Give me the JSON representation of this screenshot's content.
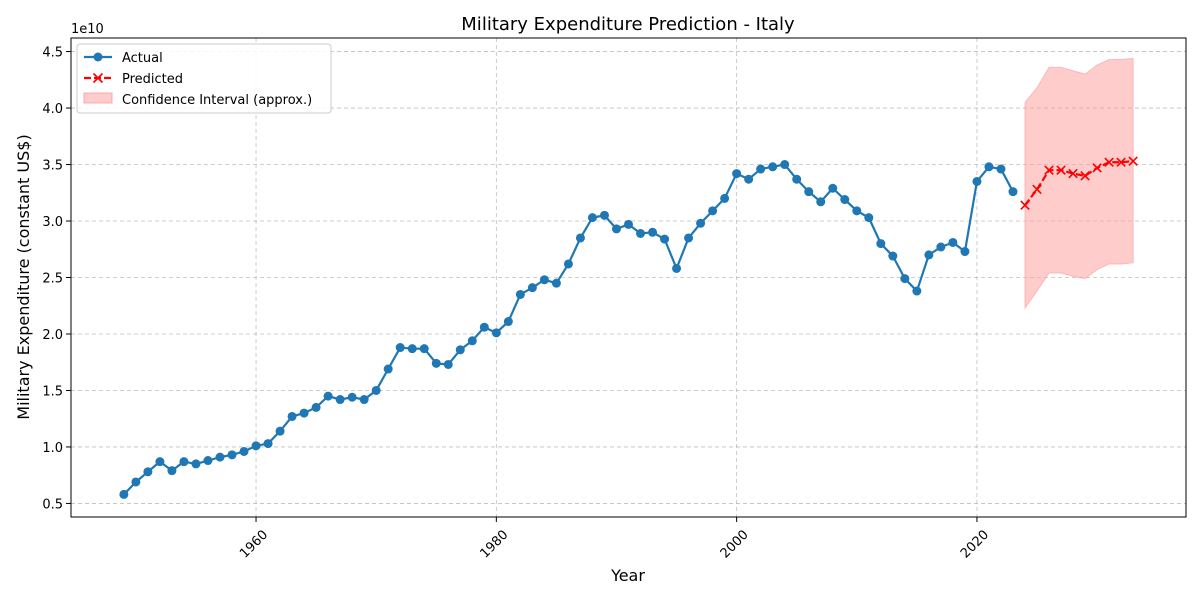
{
  "chart_data": {
    "type": "line",
    "title": "Military Expenditure Prediction - Italy",
    "xlabel": "Year",
    "ylabel": "Military Expenditure (constant US$)",
    "y_offset_label": "1e10",
    "xlim": [
      1944.6,
      2037.4
    ],
    "ylim": [
      3800000000.0,
      46200000000.0
    ],
    "x_ticks": [
      1960,
      1980,
      2000,
      2020
    ],
    "y_ticks": [
      5000000000.0,
      10000000000.0,
      15000000000.0,
      20000000000.0,
      25000000000.0,
      30000000000.0,
      35000000000.0,
      40000000000.0,
      45000000000.0
    ],
    "y_tick_labels": [
      "0.5",
      "1.0",
      "1.5",
      "2.0",
      "2.5",
      "3.0",
      "3.5",
      "4.0",
      "4.5"
    ],
    "grid": true,
    "legend_position": "top-left",
    "series": [
      {
        "name": "Actual",
        "color": "#1f77b4",
        "marker": "circle",
        "x": [
          1949,
          1950,
          1951,
          1952,
          1953,
          1954,
          1955,
          1956,
          1957,
          1958,
          1959,
          1960,
          1961,
          1962,
          1963,
          1964,
          1965,
          1966,
          1967,
          1968,
          1969,
          1970,
          1971,
          1972,
          1973,
          1974,
          1975,
          1976,
          1977,
          1978,
          1979,
          1980,
          1981,
          1982,
          1983,
          1984,
          1985,
          1986,
          1987,
          1988,
          1989,
          1990,
          1991,
          1992,
          1993,
          1994,
          1995,
          1996,
          1997,
          1998,
          1999,
          2000,
          2001,
          2002,
          2003,
          2004,
          2005,
          2006,
          2007,
          2008,
          2009,
          2010,
          2011,
          2012,
          2013,
          2014,
          2015,
          2016,
          2017,
          2018,
          2019,
          2020,
          2021,
          2022,
          2023
        ],
        "values": [
          5800000000.0,
          6900000000.0,
          7800000000.0,
          8700000000.0,
          7900000000.0,
          8700000000.0,
          8500000000.0,
          8800000000.0,
          9100000000.0,
          9300000000.0,
          9600000000.0,
          10100000000.0,
          10300000000.0,
          11400000000.0,
          12700000000.0,
          13000000000.0,
          13500000000.0,
          14500000000.0,
          14200000000.0,
          14400000000.0,
          14200000000.0,
          15000000000.0,
          16900000000.0,
          18800000000.0,
          18700000000.0,
          18700000000.0,
          17400000000.0,
          17300000000.0,
          18600000000.0,
          19400000000.0,
          20600000000.0,
          20100000000.0,
          21100000000.0,
          23500000000.0,
          24100000000.0,
          24800000000.0,
          24500000000.0,
          26200000000.0,
          28500000000.0,
          30300000000.0,
          30500000000.0,
          29300000000.0,
          29700000000.0,
          28900000000.0,
          29000000000.0,
          28400000000.0,
          25800000000.0,
          28500000000.0,
          29800000000.0,
          30900000000.0,
          32000000000.0,
          34200000000.0,
          33700000000.0,
          34600000000.0,
          34800000000.0,
          35000000000.0,
          33700000000.0,
          32600000000.0,
          31700000000.0,
          32900000000.0,
          31900000000.0,
          30900000000.0,
          30300000000.0,
          28000000000.0,
          26900000000.0,
          24900000000.0,
          23800000000.0,
          27000000000.0,
          27700000000.0,
          28100000000.0,
          27300000000.0,
          33500000000.0,
          34800000000.0,
          34600000000.0,
          32600000000.0
        ]
      },
      {
        "name": "Predicted",
        "color": "#ff0000",
        "marker": "x",
        "x": [
          2024,
          2025,
          2026,
          2027,
          2028,
          2029,
          2030,
          2031,
          2032,
          2033
        ],
        "values": [
          31400000000.0,
          32800000000.0,
          34500000000.0,
          34500000000.0,
          34200000000.0,
          34000000000.0,
          34700000000.0,
          35200000000.0,
          35200000000.0,
          35300000000.0
        ]
      }
    ],
    "confidence_interval": {
      "name": "Confidence Interval (approx.)",
      "color": "#ff9999",
      "x": [
        2024,
        2025,
        2026,
        2027,
        2028,
        2029,
        2030,
        2031,
        2032,
        2033
      ],
      "lower": [
        22300000000.0,
        23800000000.0,
        25400000000.0,
        25400000000.0,
        25100000000.0,
        24900000000.0,
        25700000000.0,
        26200000000.0,
        26200000000.0,
        26300000000.0
      ],
      "upper": [
        40500000000.0,
        41800000000.0,
        43600000000.0,
        43600000000.0,
        43300000000.0,
        43000000000.0,
        43800000000.0,
        44300000000.0,
        44300000000.0,
        44400000000.0
      ]
    }
  }
}
